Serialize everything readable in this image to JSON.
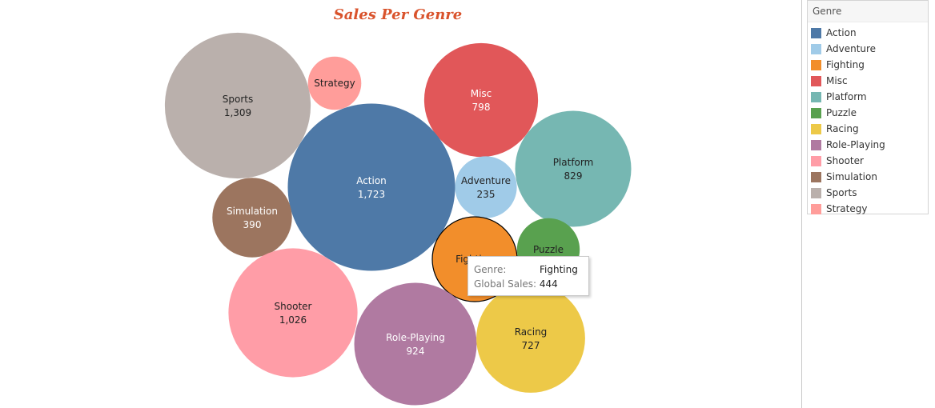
{
  "chart_data": {
    "type": "bubble",
    "title": "Sales Per Genre",
    "title_color": "#d9532c",
    "measure": "Global Sales",
    "bubbles": [
      {
        "name": "Sports",
        "value": 1309,
        "label": "1,309",
        "color": "#bab0ac",
        "show_value": true
      },
      {
        "name": "Strategy",
        "value": 175,
        "label": "",
        "color": "#ff9d9a",
        "show_value": false
      },
      {
        "name": "Misc",
        "value": 798,
        "label": "798",
        "color": "#e15759",
        "show_value": true
      },
      {
        "name": "Action",
        "value": 1723,
        "label": "1,723",
        "color": "#4e79a7",
        "show_value": true
      },
      {
        "name": "Adventure",
        "value": 235,
        "label": "235",
        "color": "#a0cbe8",
        "show_value": true
      },
      {
        "name": "Platform",
        "value": 829,
        "label": "829",
        "color": "#76b7b2",
        "show_value": true
      },
      {
        "name": "Simulation",
        "value": 390,
        "label": "390",
        "color": "#9c755f",
        "show_value": true
      },
      {
        "name": "Fighting",
        "value": 444,
        "label": "",
        "color": "#f28e2b",
        "show_value": false,
        "highlighted": true
      },
      {
        "name": "Puzzle",
        "value": 242,
        "label": "",
        "color": "#59a14f",
        "show_value": false
      },
      {
        "name": "Shooter",
        "value": 1026,
        "label": "1,026",
        "color": "#ff9da7",
        "show_value": true
      },
      {
        "name": "Role-Playing",
        "value": 924,
        "label": "924",
        "color": "#b07aa1",
        "show_value": true
      },
      {
        "name": "Racing",
        "value": 727,
        "label": "727",
        "color": "#edc948",
        "show_value": true
      }
    ]
  },
  "legend": {
    "title": "Genre",
    "items": [
      {
        "label": "Action",
        "color": "#4e79a7"
      },
      {
        "label": "Adventure",
        "color": "#a0cbe8"
      },
      {
        "label": "Fighting",
        "color": "#f28e2b"
      },
      {
        "label": "Misc",
        "color": "#e15759"
      },
      {
        "label": "Platform",
        "color": "#76b7b2"
      },
      {
        "label": "Puzzle",
        "color": "#59a14f"
      },
      {
        "label": "Racing",
        "color": "#edc948"
      },
      {
        "label": "Role-Playing",
        "color": "#b07aa1"
      },
      {
        "label": "Shooter",
        "color": "#ff9da7"
      },
      {
        "label": "Simulation",
        "color": "#9c755f"
      },
      {
        "label": "Sports",
        "color": "#bab0ac"
      },
      {
        "label": "Strategy",
        "color": "#ff9d9a"
      }
    ]
  },
  "tooltip": {
    "genre_key": "Genre:",
    "genre_value": "Fighting",
    "sales_key": "Global Sales:",
    "sales_value": "444"
  }
}
